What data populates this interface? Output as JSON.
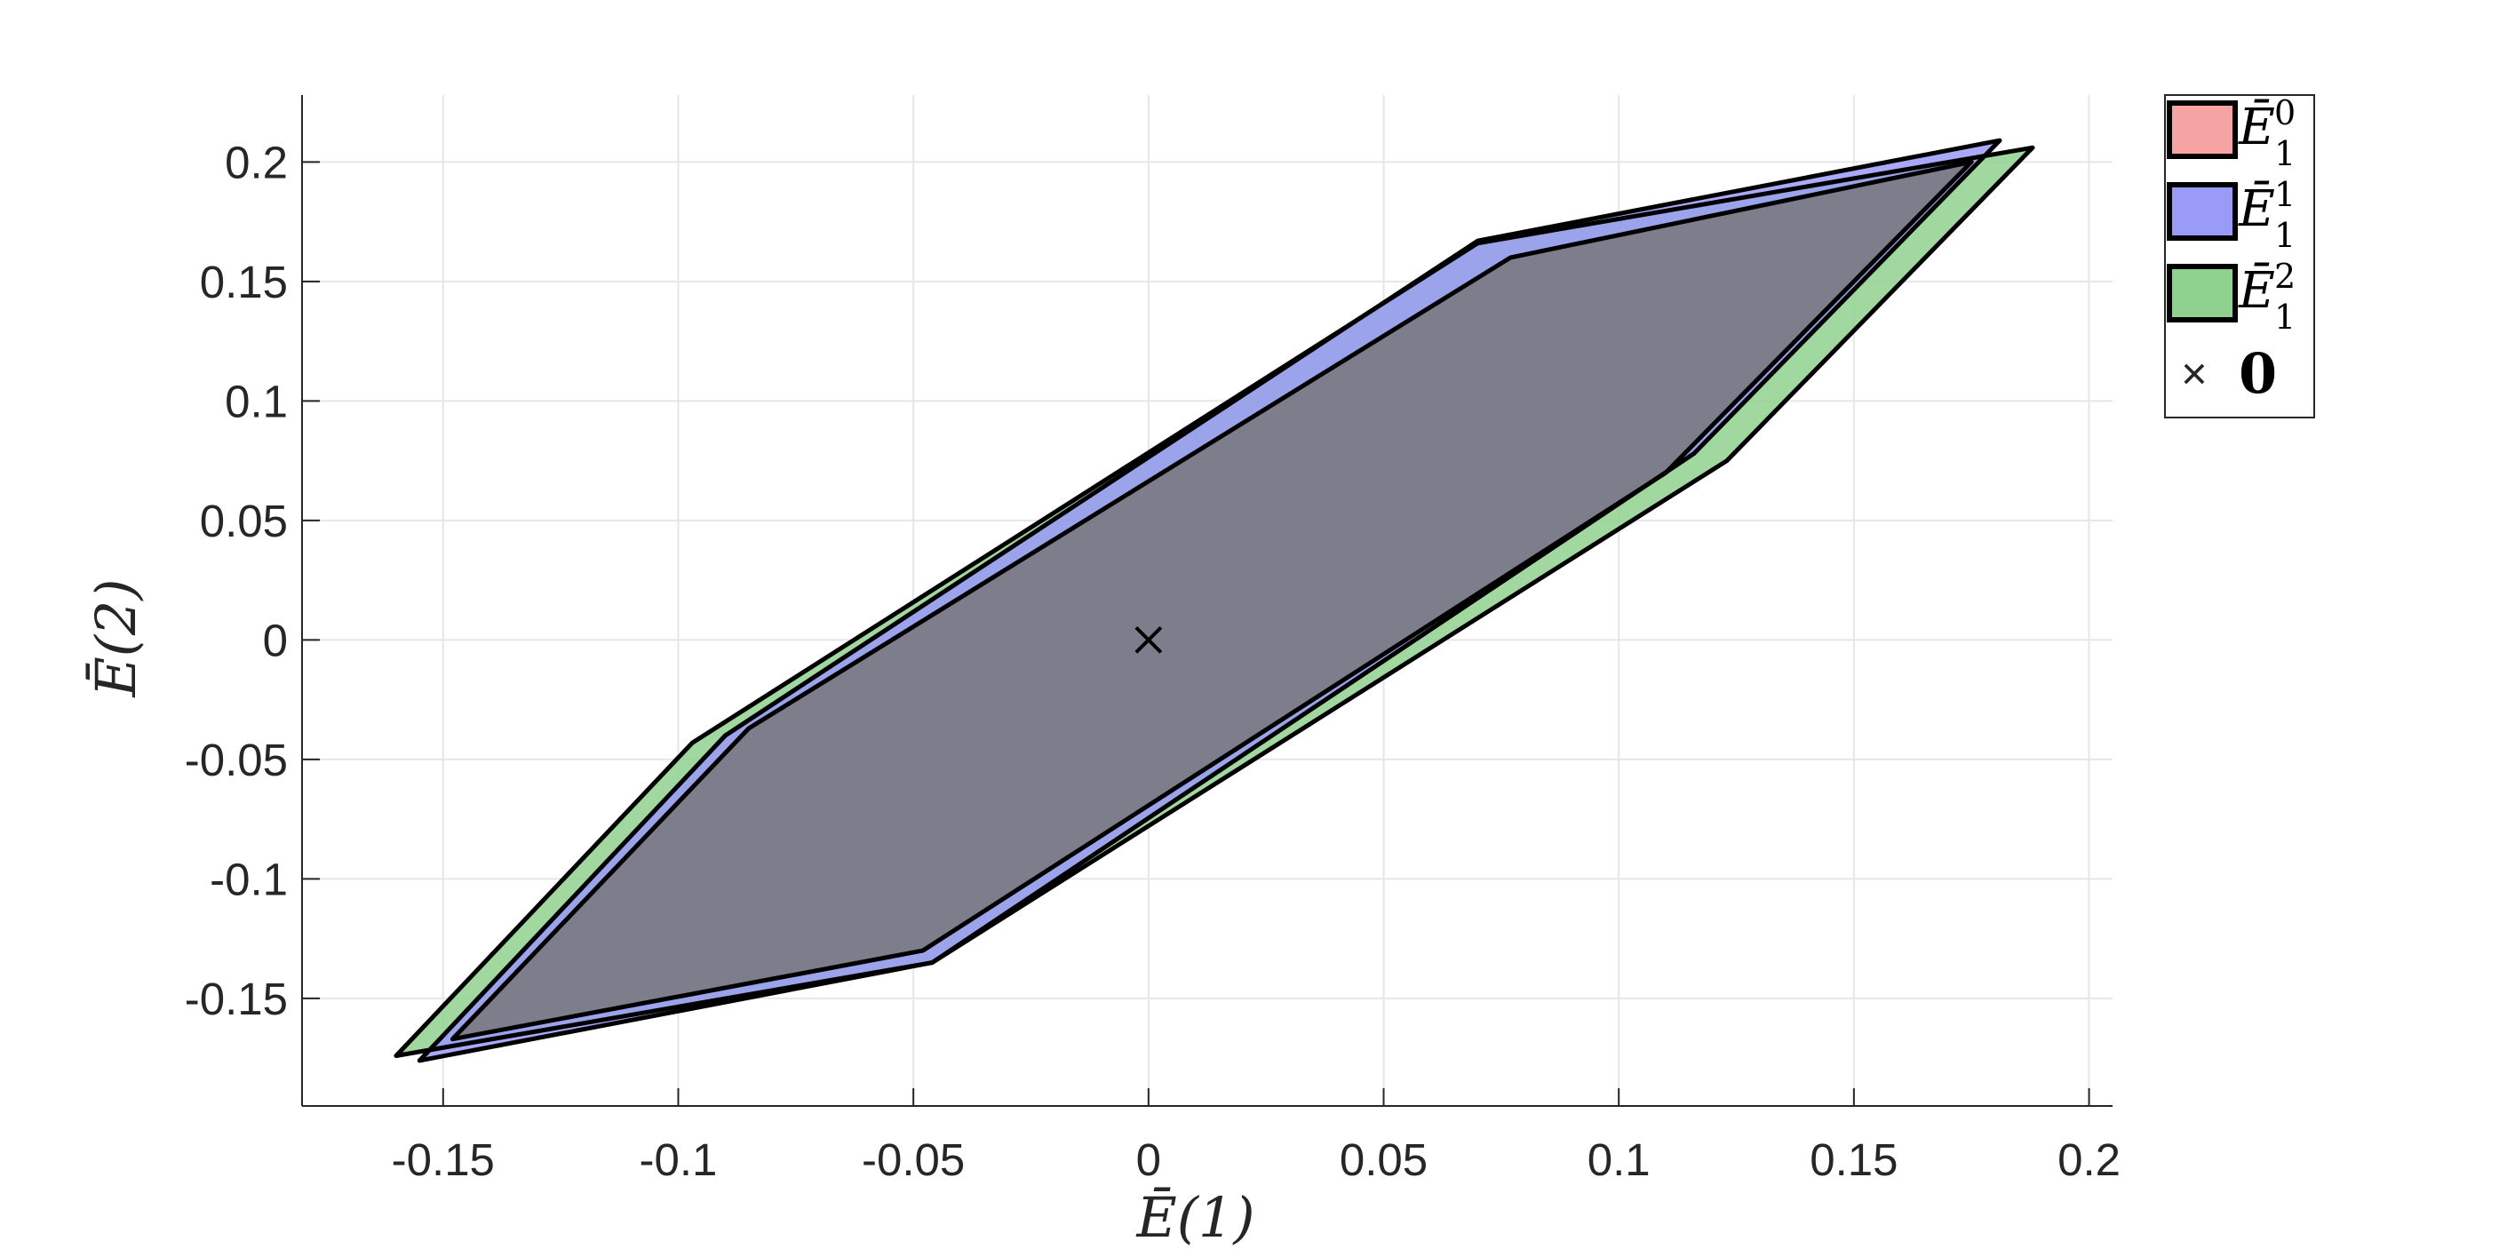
{
  "chart_data": {
    "type": "area",
    "title": "",
    "xlabel": "Ē(1)",
    "ylabel": "Ē(2)",
    "xlim": [
      -0.18,
      0.205
    ],
    "ylim": [
      -0.195,
      0.228
    ],
    "grid": true,
    "x_ticks": [
      -0.15,
      -0.1,
      -0.05,
      0,
      0.05,
      0.1,
      0.15,
      0.2
    ],
    "x_tick_labels": [
      "-0.15",
      "-0.1",
      "-0.05",
      "0",
      "0.05",
      "0.1",
      "0.15",
      "0.2"
    ],
    "y_ticks": [
      -0.15,
      -0.1,
      -0.05,
      0,
      0.05,
      0.1,
      0.15,
      0.2
    ],
    "y_tick_labels": [
      "-0.15",
      "-0.1",
      "-0.05",
      "0",
      "0.05",
      "0.1",
      "0.15",
      "0.2"
    ],
    "legend_position": "outside-top-right",
    "series": [
      {
        "name": "Ē",
        "sub": "1",
        "sup": "2",
        "color": "#8fd18f",
        "points": [
          [
            0.188,
            0.206
          ],
          [
            0.123,
            0.075
          ],
          [
            -0.046,
            -0.135
          ],
          [
            -0.16,
            -0.174
          ],
          [
            -0.097,
            -0.043
          ],
          [
            0.07,
            0.166
          ]
        ]
      },
      {
        "name": "Ē",
        "sub": "1",
        "sup": "1",
        "color": "#9a9af7",
        "points": [
          [
            0.181,
            0.209
          ],
          [
            0.116,
            0.078
          ],
          [
            -0.046,
            -0.135
          ],
          [
            -0.155,
            -0.176
          ],
          [
            -0.09,
            -0.04
          ],
          [
            0.07,
            0.167
          ]
        ]
      },
      {
        "name": "Ē",
        "sub": "1",
        "sup": "0",
        "color": "#f5a3a3",
        "points": [
          [
            0.175,
            0.2
          ],
          [
            0.11,
            0.07
          ],
          [
            -0.048,
            -0.13
          ],
          [
            -0.148,
            -0.167
          ],
          [
            -0.085,
            -0.037
          ],
          [
            0.077,
            0.16
          ]
        ]
      }
    ],
    "overlap_color": "#787b8a",
    "marker": {
      "label": "0",
      "symbol": "×",
      "x": 0,
      "y": 0
    }
  }
}
